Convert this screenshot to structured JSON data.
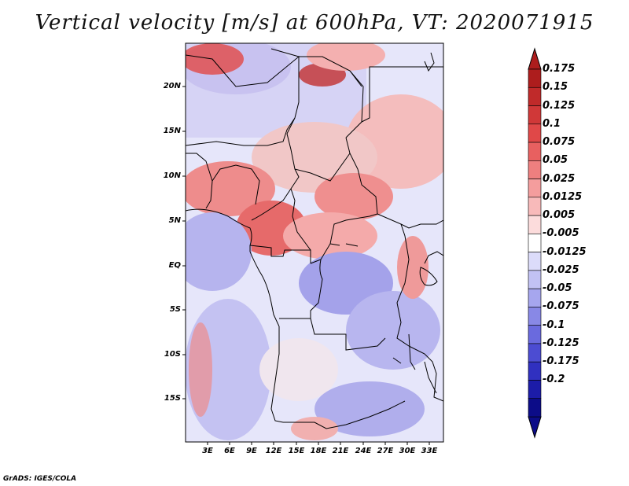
{
  "title": "Vertical velocity [m/s] at 600hPa, VT: 2020071915",
  "credit": "GrADS: IGES/COLA",
  "lat_labels": [
    "20N",
    "15N",
    "10N",
    "5N",
    "EQ",
    "5S",
    "10S",
    "15S"
  ],
  "lon_labels": [
    "3E",
    "6E",
    "9E",
    "12E",
    "15E",
    "18E",
    "21E",
    "24E",
    "27E",
    "30E",
    "33E"
  ],
  "colorbar": {
    "labels": [
      "0.175",
      "0.15",
      "0.125",
      "0.1",
      "0.075",
      "0.05",
      "0.025",
      "0.0125",
      "0.005",
      "-0.005",
      "-0.0125",
      "-0.025",
      "-0.05",
      "-0.075",
      "-0.1",
      "-0.125",
      "-0.175",
      "-0.2"
    ],
    "colors": [
      "#ad1d1d",
      "#c02a2a",
      "#d03838",
      "#e04848",
      "#e86060",
      "#ee7f7f",
      "#f49d9d",
      "#f8baba",
      "#fcdcdc",
      "#ffffff",
      "#dcdcfa",
      "#c2c2f4",
      "#a6a6ee",
      "#8888e6",
      "#6a6ade",
      "#4c4cd2",
      "#3030c0",
      "#1c1ca8",
      "#0c0c88"
    ]
  }
}
